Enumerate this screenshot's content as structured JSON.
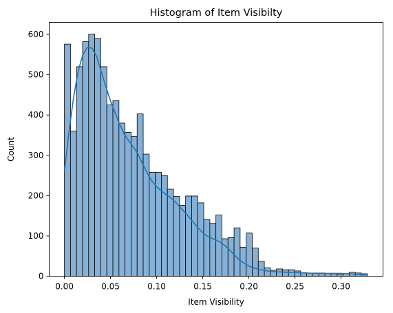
{
  "chart_data": {
    "type": "bar",
    "title": "Histogram of Item Visibilty",
    "xlabel": "Item Visibility",
    "ylabel": "Count",
    "xlim": [
      -0.0165,
      0.3455
    ],
    "ylim": [
      0,
      630
    ],
    "xticks": [
      0.0,
      0.05,
      0.1,
      0.15,
      0.2,
      0.25,
      0.3
    ],
    "xtick_labels": [
      "0.00",
      "0.05",
      "0.10",
      "0.15",
      "0.20",
      "0.25",
      "0.30"
    ],
    "yticks": [
      0,
      100,
      200,
      300,
      400,
      500,
      600
    ],
    "ytick_labels": [
      "0",
      "100",
      "200",
      "300",
      "400",
      "500",
      "600"
    ],
    "grid": false,
    "bin_width": 0.00657,
    "bin_start": 0.0,
    "counts": [
      576,
      360,
      520,
      582,
      601,
      590,
      520,
      425,
      436,
      380,
      357,
      347,
      403,
      303,
      258,
      258,
      250,
      216,
      198,
      176,
      199,
      199,
      182,
      141,
      131,
      152,
      93,
      96,
      120,
      72,
      107,
      70,
      37,
      21,
      15,
      18,
      16,
      16,
      13,
      9,
      8,
      8,
      8,
      7,
      6,
      4,
      7,
      10,
      8,
      6
    ],
    "kde": {
      "x": [
        0.0,
        0.005,
        0.01,
        0.015,
        0.02,
        0.025,
        0.03,
        0.035,
        0.04,
        0.045,
        0.05,
        0.055,
        0.06,
        0.065,
        0.07,
        0.075,
        0.08,
        0.085,
        0.09,
        0.095,
        0.1,
        0.105,
        0.11,
        0.115,
        0.12,
        0.125,
        0.13,
        0.135,
        0.14,
        0.145,
        0.15,
        0.155,
        0.16,
        0.165,
        0.17,
        0.175,
        0.18,
        0.185,
        0.19,
        0.195,
        0.2,
        0.21,
        0.22,
        0.23,
        0.24,
        0.25,
        0.26,
        0.27,
        0.28,
        0.29,
        0.3,
        0.31,
        0.32,
        0.328
      ],
      "y": [
        260,
        360,
        445,
        510,
        550,
        568,
        566,
        545,
        508,
        470,
        435,
        405,
        377,
        352,
        335,
        320,
        302,
        278,
        255,
        236,
        222,
        212,
        203,
        195,
        185,
        172,
        160,
        147,
        133,
        120,
        108,
        99,
        94,
        89,
        83,
        74,
        63,
        51,
        40,
        32,
        25,
        17,
        13,
        11,
        10,
        9,
        8,
        7,
        7,
        7,
        7,
        6,
        4,
        3
      ]
    },
    "colors": {
      "bar_fill": "#86b0d6",
      "bar_edge": "#000000",
      "kde_line": "#1f77b4"
    }
  }
}
